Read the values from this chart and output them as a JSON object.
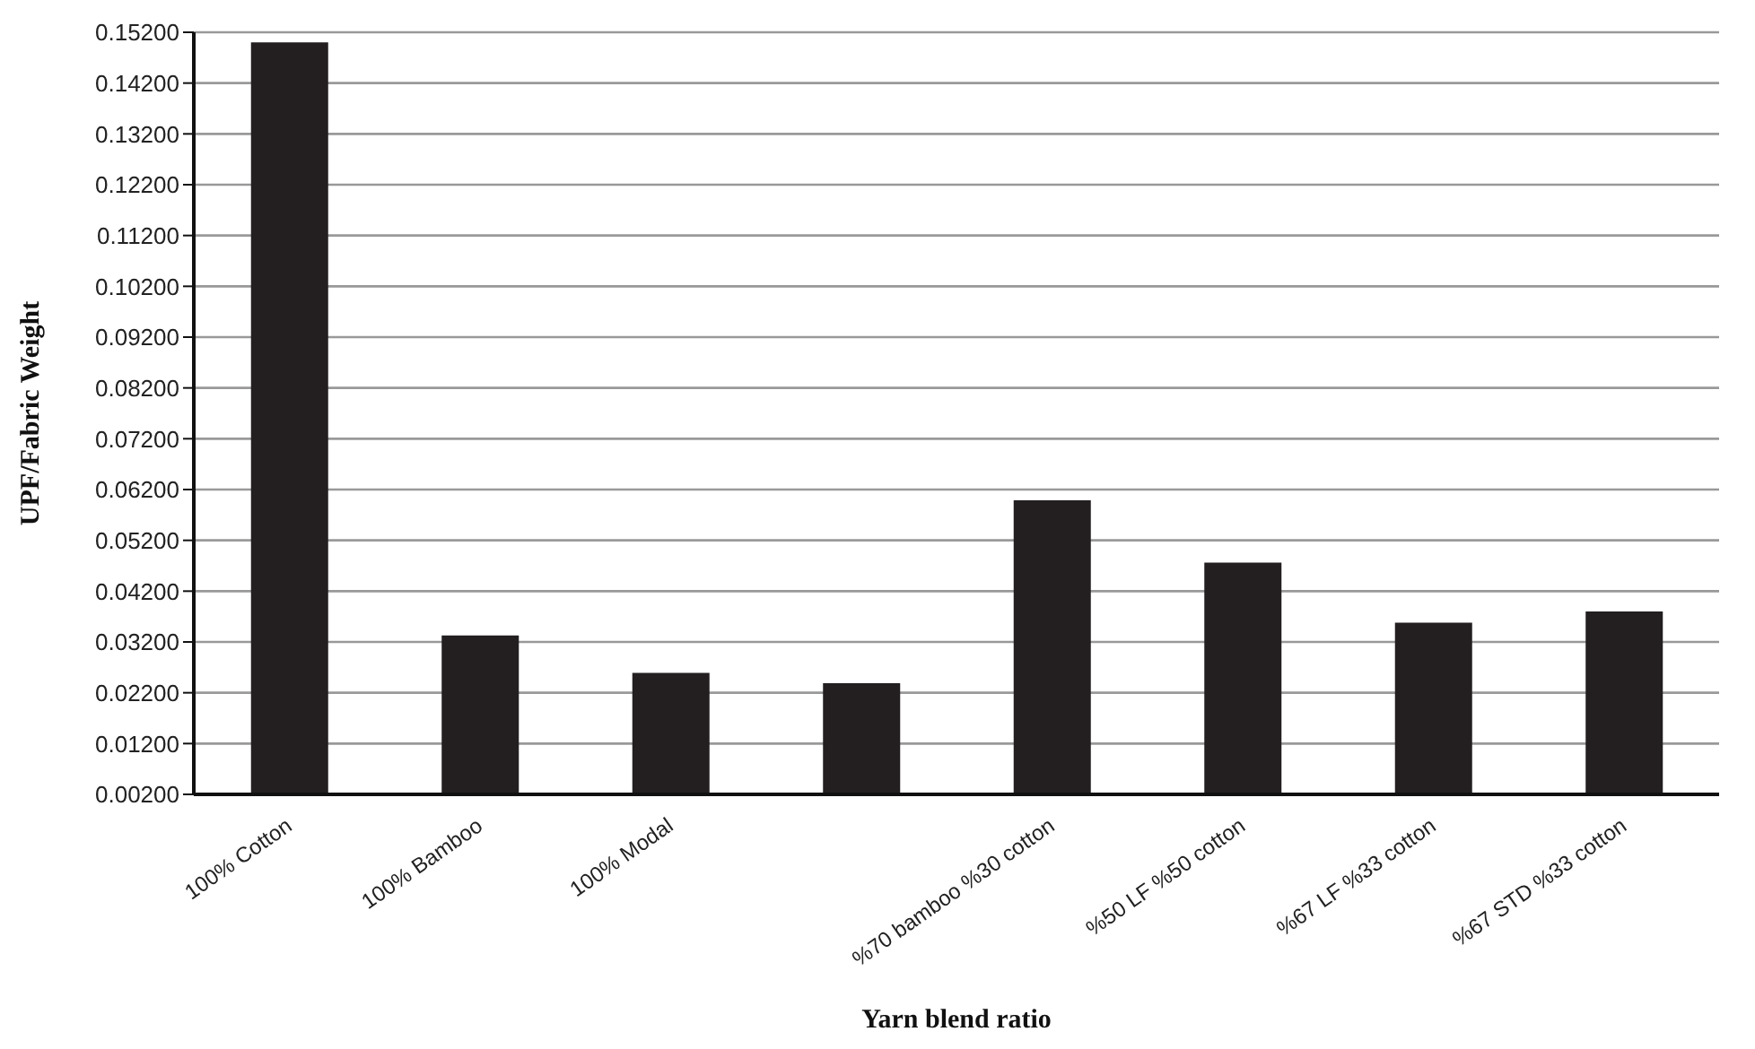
{
  "chart_data": {
    "type": "bar",
    "xlabel": "Yarn blend ratio",
    "ylabel": "UPF/Fabric Weight",
    "categories": [
      "100% Cotton",
      "100% Bamboo",
      "100% Modal",
      null,
      "%70 bamboo %30 cotton",
      "%50 LF %50 cotton",
      "%67 LF %33 cotton",
      "%67 STD %33 cotton"
    ],
    "values": [
      0.15,
      0.0333,
      0.0259,
      0.0239,
      0.0599,
      0.0476,
      0.0358,
      0.038
    ],
    "color": "#231f20",
    "ylim": [
      0.002,
      0.152
    ],
    "yticks": [
      {
        "value": 0.002,
        "label": "0.00200"
      },
      {
        "value": 0.012,
        "label": "0.01200"
      },
      {
        "value": 0.022,
        "label": "0.02200"
      },
      {
        "value": 0.032,
        "label": "0.03200"
      },
      {
        "value": 0.042,
        "label": "0.04200"
      },
      {
        "value": 0.052,
        "label": "0.05200"
      },
      {
        "value": 0.062,
        "label": "0.06200"
      },
      {
        "value": 0.072,
        "label": "0.07200"
      },
      {
        "value": 0.082,
        "label": "0.08200"
      },
      {
        "value": 0.092,
        "label": "0.09200"
      },
      {
        "value": 0.102,
        "label": "0.10200"
      },
      {
        "value": 0.112,
        "label": "0.11200"
      },
      {
        "value": 0.122,
        "label": "0.12200"
      },
      {
        "value": 0.132,
        "label": "0.13200"
      },
      {
        "value": 0.142,
        "label": "0.14200"
      },
      {
        "value": 0.152,
        "label": "0.15200"
      }
    ],
    "grid": "y"
  }
}
